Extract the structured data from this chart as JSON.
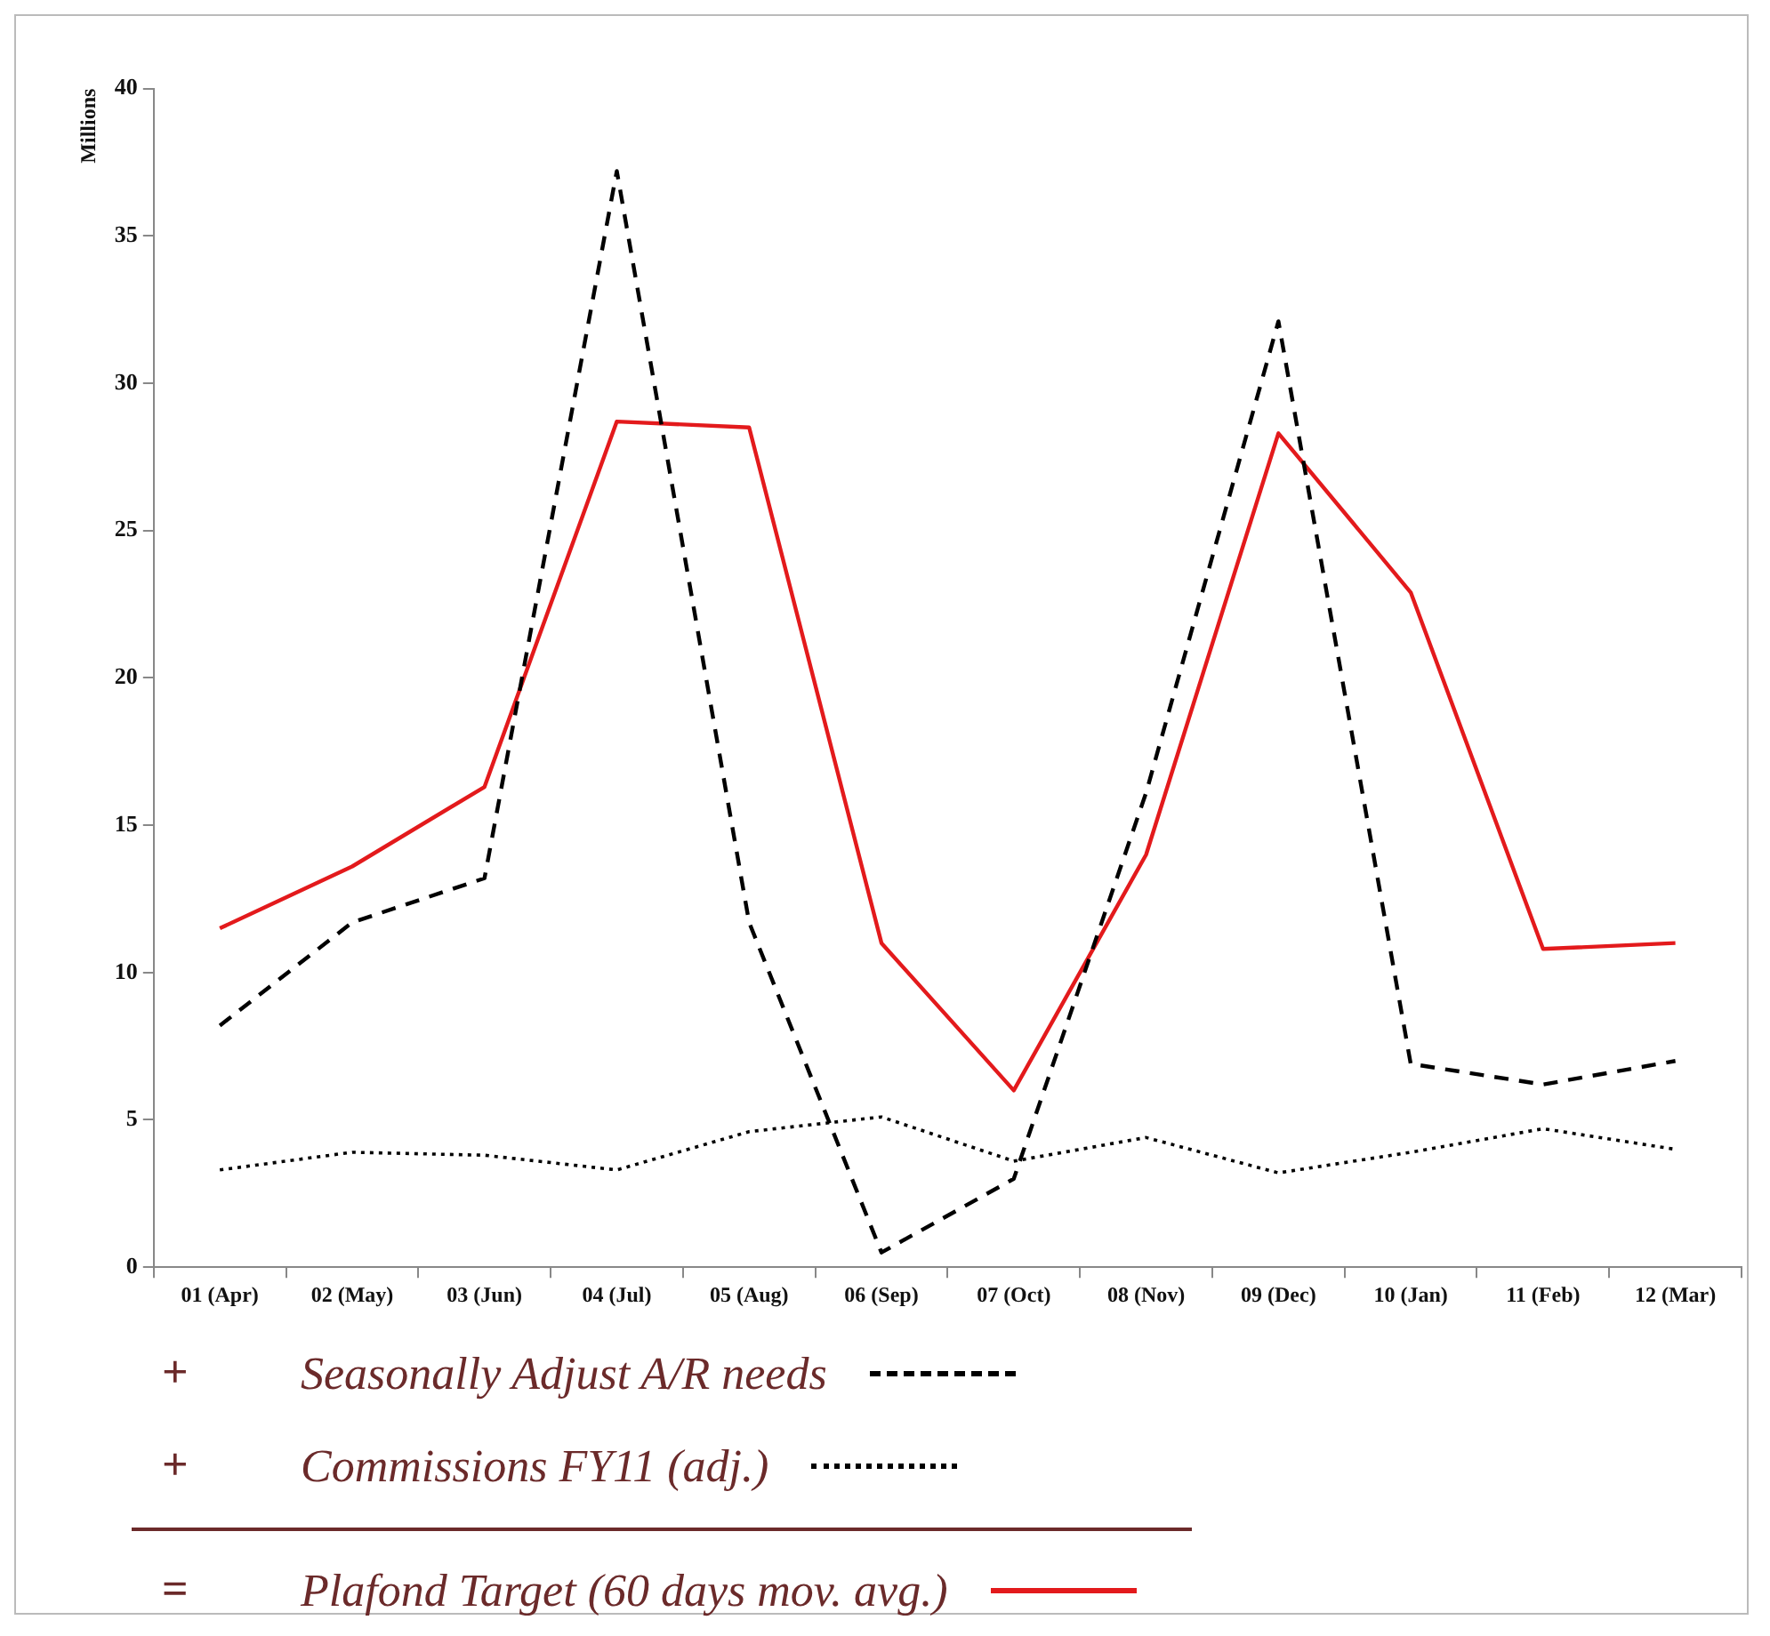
{
  "chart_data": {
    "type": "line",
    "ylabel": "Millions",
    "categories": [
      "01 (Apr)",
      "02 (May)",
      "03 (Jun)",
      "04 (Jul)",
      "05 (Aug)",
      "06 (Sep)",
      "07 (Oct)",
      "08 (Nov)",
      "09 (Dec)",
      "10 (Jan)",
      "11 (Feb)",
      "12 (Mar)"
    ],
    "series": [
      {
        "name": "Seasonally Adjust A/R needs",
        "color": "#000000",
        "line_style": "dashed",
        "values": [
          8.2,
          11.7,
          13.2,
          37.2,
          11.7,
          0.5,
          3.0,
          16.1,
          32.1,
          6.9,
          6.2,
          7.0
        ]
      },
      {
        "name": "Commissions FY11 (adj.)",
        "color": "#000000",
        "line_style": "dotted",
        "values": [
          3.3,
          3.9,
          3.8,
          3.3,
          4.6,
          5.1,
          3.6,
          4.4,
          3.2,
          3.9,
          4.7,
          4.0
        ]
      },
      {
        "name": "Plafond Target (60 days mov. avg.)",
        "color": "#e31a1c",
        "line_style": "solid",
        "values": [
          11.5,
          13.6,
          16.3,
          28.7,
          28.5,
          11.0,
          6.0,
          14.0,
          28.3,
          22.9,
          10.8,
          11.0
        ]
      }
    ],
    "ylim": [
      0,
      40
    ],
    "yticks": [
      0,
      5,
      10,
      15,
      20,
      25,
      30,
      35,
      40
    ],
    "grid": false,
    "marker": "none",
    "legend": "bottom",
    "annotations": [
      "+",
      "+",
      "="
    ]
  }
}
